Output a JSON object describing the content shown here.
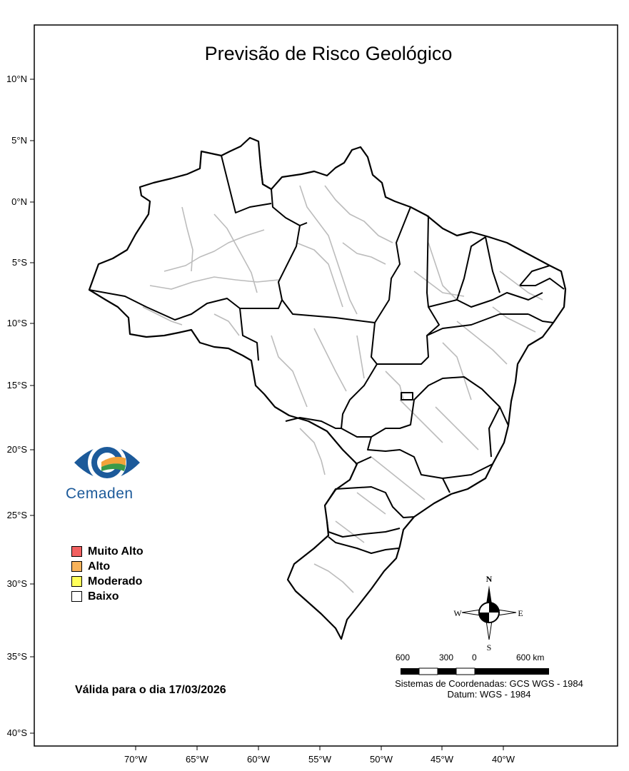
{
  "title": "Previsão de Risco Geológico",
  "latitude_labels": [
    "10°N",
    "5°N",
    "0°N",
    "5°S",
    "10°S",
    "15°S",
    "20°S",
    "25°S",
    "30°S",
    "35°S",
    "40°S"
  ],
  "longitude_labels": [
    "70°W",
    "65°W",
    "60°W",
    "55°W",
    "50°W",
    "45°W",
    "40°W"
  ],
  "legend": {
    "items": [
      {
        "label": "Muito Alto",
        "color": "#f26060"
      },
      {
        "label": "Alto",
        "color": "#f7b25a"
      },
      {
        "label": "Moderado",
        "color": "#ffff5a"
      },
      {
        "label": "Baixo",
        "color": "#ffffff"
      }
    ]
  },
  "valid_date": "Válida para o dia 17/03/2026",
  "logo": {
    "text": "Cemaden"
  },
  "compass": {
    "n": "N",
    "s": "S",
    "e": "E",
    "w": "W"
  },
  "scale": {
    "labels": [
      "600",
      "300",
      "0",
      "600 km"
    ]
  },
  "coordinate_system": {
    "line1": "Sistemas de Coordenadas: GCS WGS - 1984",
    "line2": "Datum: WGS - 1984"
  },
  "colors": {
    "state_border": "#000000",
    "municipal_border": "#bcbcbc",
    "logo_blue": "#1c5a9a"
  }
}
